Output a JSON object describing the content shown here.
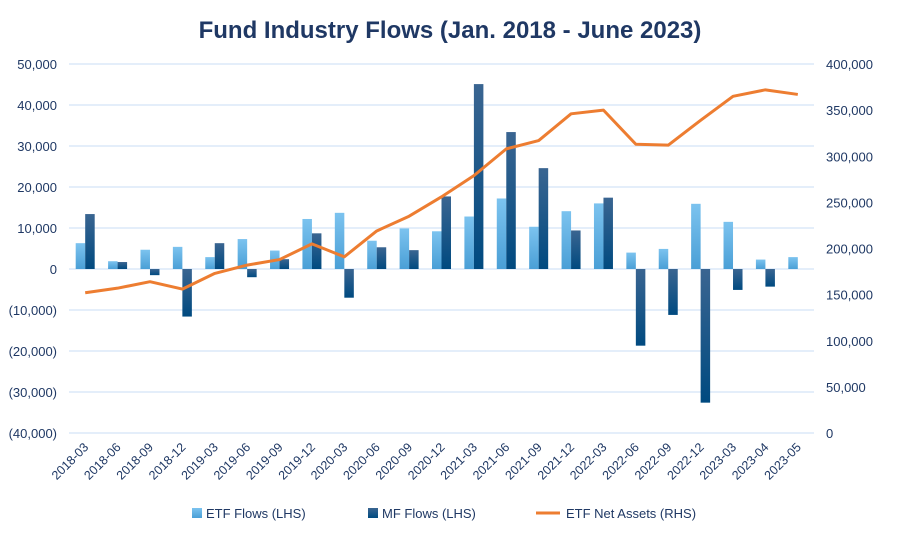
{
  "chart_data": {
    "type": "bar+line",
    "title": "Fund Industry Flows (Jan. 2018 - June 2023)",
    "categories": [
      "2018-03",
      "2018-06",
      "2018-09",
      "2018-12",
      "2019-03",
      "2019-06",
      "2019-09",
      "2019-12",
      "2020-03",
      "2020-06",
      "2020-09",
      "2020-12",
      "2021-03",
      "2021-06",
      "2021-09",
      "2021-12",
      "2022-03",
      "2022-06",
      "2022-09",
      "2022-12",
      "2023-03",
      "2023-04",
      "2023-05"
    ],
    "left_axis": {
      "range": [
        -40000,
        50000
      ],
      "ticks": [
        "50,000",
        "40,000",
        "30,000",
        "20,000",
        "10,000",
        "0",
        "(10,000)",
        "(20,000)",
        "(30,000)",
        "(40,000)"
      ],
      "tick_values": [
        50000,
        40000,
        30000,
        20000,
        10000,
        0,
        -10000,
        -20000,
        -30000,
        -40000
      ]
    },
    "right_axis": {
      "range": [
        0,
        400000
      ],
      "ticks": [
        "400,000",
        "350,000",
        "300,000",
        "250,000",
        "200,000",
        "150,000",
        "100,000",
        "50,000",
        "0"
      ],
      "tick_values": [
        400000,
        350000,
        300000,
        250000,
        200000,
        150000,
        100000,
        50000,
        0
      ]
    },
    "grid": true,
    "legend_position": "bottom",
    "series": [
      {
        "name": "ETF Flows (LHS)",
        "type": "bar",
        "axis": "left",
        "color": "#5dade2",
        "values": [
          6300,
          1900,
          4700,
          5400,
          2900,
          7300,
          4500,
          12200,
          13700,
          6900,
          9900,
          9200,
          12800,
          17200,
          10300,
          14100,
          16000,
          4000,
          4900,
          15900,
          11500,
          2300,
          2900
        ]
      },
      {
        "name": "MF Flows (LHS)",
        "type": "bar",
        "axis": "left",
        "color": "#004a80",
        "values": [
          13400,
          1700,
          -1500,
          -11600,
          6300,
          -2000,
          2400,
          8700,
          -7000,
          5300,
          4600,
          17700,
          45100,
          33400,
          24600,
          9400,
          17400,
          -18700,
          -11200,
          -32600,
          -5100,
          -4300,
          null
        ]
      },
      {
        "name": "ETF Net Assets (RHS)",
        "type": "line",
        "axis": "right",
        "color": "#ed7d31",
        "values": [
          152000,
          157000,
          164000,
          156000,
          173000,
          182000,
          188000,
          205000,
          191000,
          219000,
          235000,
          256000,
          279000,
          308000,
          317000,
          346000,
          350000,
          313000,
          312000,
          339000,
          365000,
          372000,
          367000
        ]
      }
    ]
  }
}
